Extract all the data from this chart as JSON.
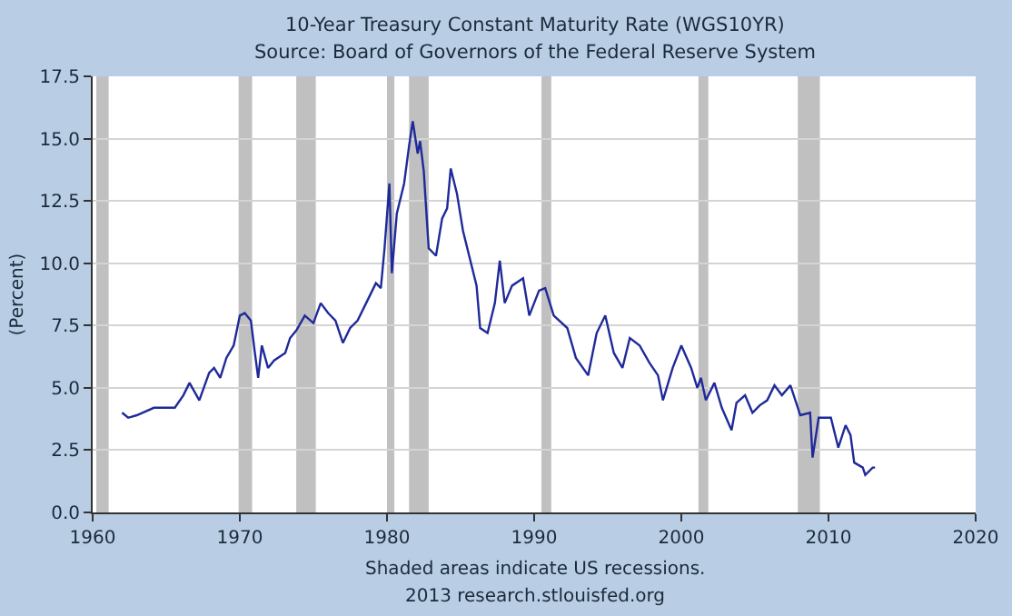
{
  "chart_data": {
    "type": "line",
    "title": "10-Year Treasury Constant Maturity Rate (WGS10YR)",
    "subtitle": "Source: Board of Governors of the Federal Reserve System",
    "ylabel": "(Percent)",
    "annotations": [
      "Shaded areas indicate US recessions.",
      "2013 research.stlouisfed.org"
    ],
    "x": [
      "1962-01",
      "1962-06",
      "1963-01",
      "1964-03",
      "1965-08",
      "1966-03",
      "1966-08",
      "1967-04",
      "1967-12",
      "1968-04",
      "1968-09",
      "1969-02",
      "1969-08",
      "1970-01",
      "1970-05",
      "1970-10",
      "1971-01",
      "1971-04",
      "1971-07",
      "1971-12",
      "1972-05",
      "1973-02",
      "1973-06",
      "1973-11",
      "1974-06",
      "1975-01",
      "1975-07",
      "1976-01",
      "1976-07",
      "1977-01",
      "1977-07",
      "1978-01",
      "1978-09",
      "1979-04",
      "1979-08",
      "1979-11",
      "1980-03",
      "1980-05",
      "1980-09",
      "1981-03",
      "1981-07",
      "1981-10",
      "1982-02",
      "1982-04",
      "1982-07",
      "1982-11",
      "1983-05",
      "1983-10",
      "1984-02",
      "1984-05",
      "1984-10",
      "1985-03",
      "1985-08",
      "1986-02",
      "1986-05",
      "1986-11",
      "1987-05",
      "1987-09",
      "1988-01",
      "1988-07",
      "1989-04",
      "1989-09",
      "1990-05",
      "1990-10",
      "1991-05",
      "1992-04",
      "1992-11",
      "1993-09",
      "1994-04",
      "1994-11",
      "1995-06",
      "1996-01",
      "1996-07",
      "1997-03",
      "1997-11",
      "1998-06",
      "1998-10",
      "1999-06",
      "2000-01",
      "2000-09",
      "2001-02",
      "2001-05",
      "2001-09",
      "2002-04",
      "2002-10",
      "2003-06",
      "2003-10",
      "2004-05",
      "2004-11",
      "2005-05",
      "2005-11",
      "2006-05",
      "2006-11",
      "2007-06",
      "2008-02",
      "2008-10",
      "2008-12",
      "2009-05",
      "2010-03",
      "2010-09",
      "2011-03",
      "2011-07",
      "2011-10",
      "2012-05",
      "2012-07",
      "2013-01",
      "2013-03"
    ],
    "series": [
      {
        "color": "#1f2a9a",
        "values": [
          4.0,
          3.8,
          3.9,
          4.2,
          4.2,
          4.7,
          5.2,
          4.5,
          5.6,
          5.8,
          5.4,
          6.2,
          6.7,
          7.9,
          8.0,
          7.7,
          6.5,
          5.4,
          6.7,
          5.8,
          6.1,
          6.4,
          7.0,
          7.3,
          7.9,
          7.6,
          8.4,
          8.0,
          7.7,
          6.8,
          7.4,
          7.7,
          8.5,
          9.2,
          9.0,
          10.6,
          13.2,
          9.6,
          12.0,
          13.2,
          14.7,
          15.7,
          14.4,
          14.9,
          13.7,
          10.6,
          10.3,
          11.8,
          12.2,
          13.8,
          12.8,
          11.3,
          10.3,
          9.1,
          7.4,
          7.2,
          8.4,
          10.1,
          8.4,
          9.1,
          9.4,
          7.9,
          8.9,
          9.0,
          7.9,
          7.4,
          6.2,
          5.5,
          7.2,
          7.9,
          6.4,
          5.8,
          7.0,
          6.7,
          6.0,
          5.5,
          4.5,
          5.8,
          6.7,
          5.8,
          5.0,
          5.4,
          4.5,
          5.2,
          4.2,
          3.3,
          4.4,
          4.7,
          4.0,
          4.3,
          4.5,
          5.1,
          4.7,
          5.1,
          3.9,
          4.0,
          2.2,
          3.8,
          3.8,
          2.6,
          3.5,
          3.1,
          2.0,
          1.8,
          1.5,
          1.8,
          1.8
        ]
      }
    ],
    "xlim": [
      "1960",
      "2020"
    ],
    "xticks": [
      "1960",
      "1970",
      "1980",
      "1990",
      "2000",
      "2010",
      "2020"
    ],
    "ylim": [
      0,
      17.5
    ],
    "yticks": [
      {
        "value": 0,
        "label": "0.0"
      },
      2.5,
      {
        "value": 5,
        "label": "5.0"
      },
      7.5,
      {
        "value": 10,
        "label": "10.0"
      },
      12.5,
      {
        "value": 15,
        "label": "15.0"
      },
      17.5
    ],
    "grid": "y",
    "bands": [
      {
        "axis": "x",
        "from": "1960-04",
        "to": "1961-02",
        "color": "#c0c0c0"
      },
      {
        "axis": "x",
        "from": "1969-12",
        "to": "1970-11",
        "color": "#c0c0c0"
      },
      {
        "axis": "x",
        "from": "1973-11",
        "to": "1975-03",
        "color": "#c0c0c0"
      },
      {
        "axis": "x",
        "from": "1980-01",
        "to": "1980-07",
        "color": "#c0c0c0"
      },
      {
        "axis": "x",
        "from": "1981-07",
        "to": "1982-11",
        "color": "#c0c0c0"
      },
      {
        "axis": "x",
        "from": "1990-07",
        "to": "1991-03",
        "color": "#c0c0c0"
      },
      {
        "axis": "x",
        "from": "2001-03",
        "to": "2001-11",
        "color": "#c0c0c0"
      },
      {
        "axis": "x",
        "from": "2007-12",
        "to": "2009-06",
        "color": "#c0c0c0"
      }
    ]
  }
}
